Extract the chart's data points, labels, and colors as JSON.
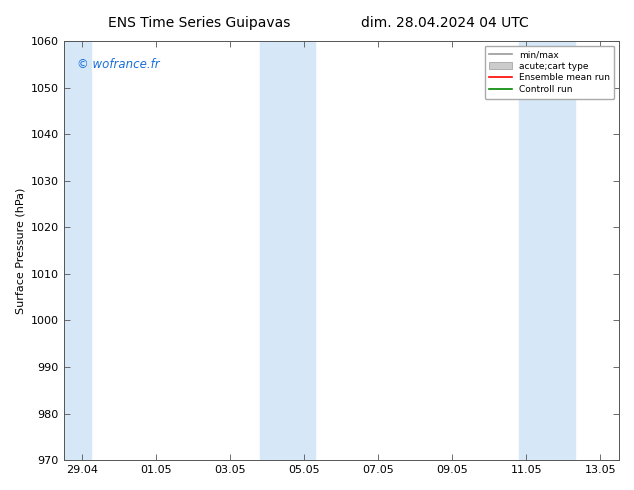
{
  "title_left": "ENS Time Series Guipavas",
  "title_right": "dim. 28.04.2024 04 UTC",
  "ylabel": "Surface Pressure (hPa)",
  "ylim": [
    970,
    1060
  ],
  "yticks": [
    970,
    980,
    990,
    1000,
    1010,
    1020,
    1030,
    1040,
    1050,
    1060
  ],
  "xtick_labels": [
    "29.04",
    "01.05",
    "03.05",
    "05.05",
    "07.05",
    "09.05",
    "11.05",
    "13.05"
  ],
  "watermark": "© wofrance.fr",
  "watermark_color": "#1a6ed8",
  "background_color": "#ffffff",
  "plot_bg_color": "#ffffff",
  "shade_color": "#d6e8f7",
  "legend_labels": [
    "min/max",
    "acute;cart type",
    "Ensemble mean run",
    "Controll run"
  ],
  "title_fontsize": 10,
  "axis_fontsize": 8,
  "tick_fontsize": 8
}
